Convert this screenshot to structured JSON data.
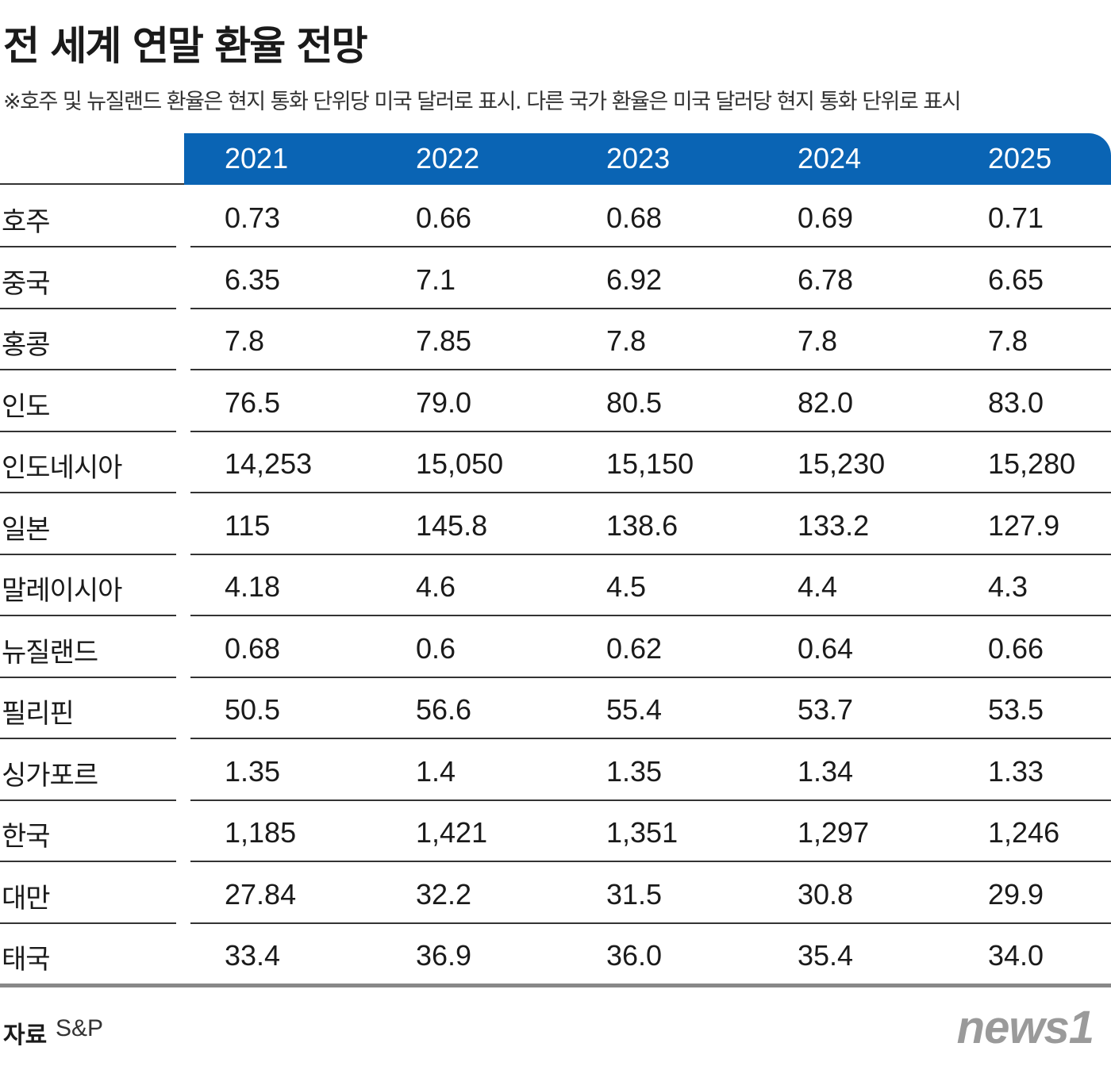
{
  "header": {
    "title": "전 세계 연말 환율 전망",
    "subtitle": "※호주 및 뉴질랜드 환율은 현지 통화 단위당 미국 달러로 표시. 다른 국가 환율은 미국 달러당 현지 통화 단위로 표시"
  },
  "table": {
    "columns": [
      "2021",
      "2022",
      "2023",
      "2024",
      "2025"
    ],
    "rows": [
      [
        "호주",
        "0.73",
        "0.66",
        "0.68",
        "0.69",
        "0.71"
      ],
      [
        "중국",
        "6.35",
        "7.1",
        "6.92",
        "6.78",
        "6.65"
      ],
      [
        "홍콩",
        "7.8",
        "7.85",
        "7.8",
        "7.8",
        "7.8"
      ],
      [
        "인도",
        "76.5",
        "79.0",
        "80.5",
        "82.0",
        "83.0"
      ],
      [
        "인도네시아",
        "14,253",
        "15,050",
        "15,150",
        "15,230",
        "15,280"
      ],
      [
        "일본",
        "115",
        "145.8",
        "138.6",
        "133.2",
        "127.9"
      ],
      [
        "말레이시아",
        "4.18",
        "4.6",
        "4.5",
        "4.4",
        "4.3"
      ],
      [
        "뉴질랜드",
        "0.68",
        "0.6",
        "0.62",
        "0.64",
        "0.66"
      ],
      [
        "필리핀",
        "50.5",
        "56.6",
        "55.4",
        "53.7",
        "53.5"
      ],
      [
        "싱가포르",
        "1.35",
        "1.4",
        "1.35",
        "1.34",
        "1.33"
      ],
      [
        "한국",
        "1,185",
        "1,421",
        "1,351",
        "1,297",
        "1,246"
      ],
      [
        "대만",
        "27.84",
        "32.2",
        "31.5",
        "30.8",
        "29.9"
      ],
      [
        "태국",
        "33.4",
        "36.9",
        "36.0",
        "35.4",
        "34.0"
      ]
    ]
  },
  "footer": {
    "source_label": "자료",
    "source": "S&P",
    "logo": "news1"
  }
}
